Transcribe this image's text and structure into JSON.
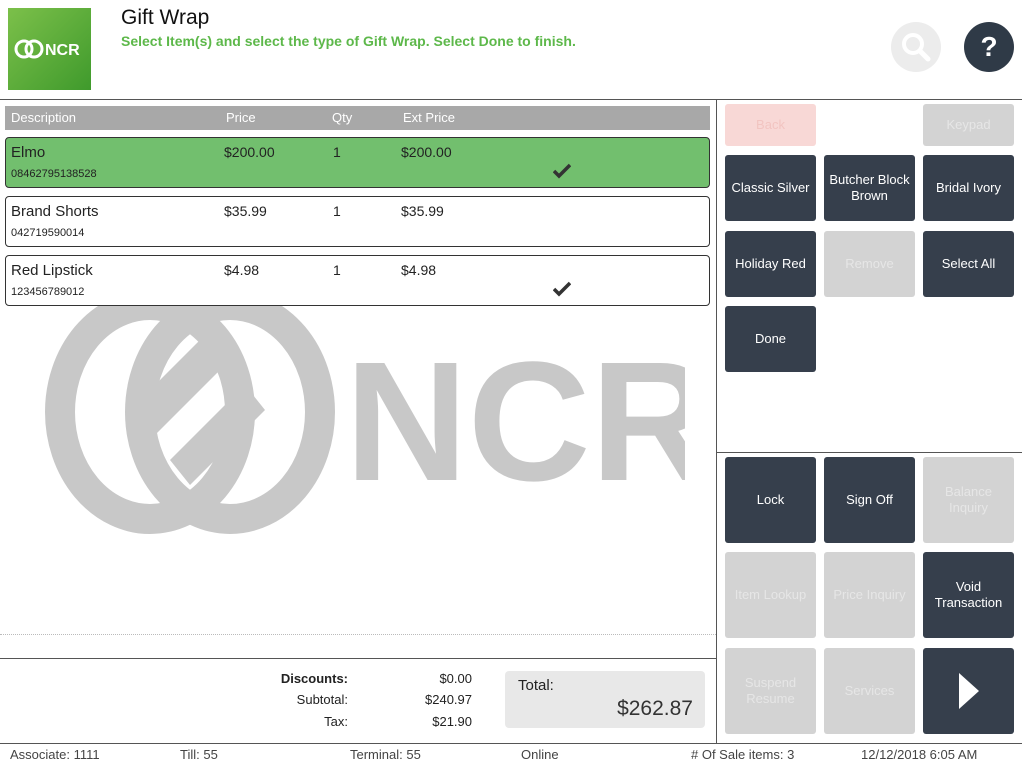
{
  "header": {
    "logo_text": "NCR",
    "title": "Gift Wrap",
    "subtitle": "Select Item(s) and select the type of Gift Wrap. Select Done to finish.",
    "help_label": "?"
  },
  "list": {
    "columns": {
      "description": "Description",
      "price": "Price",
      "qty": "Qty",
      "ext_price": "Ext Price"
    },
    "items": [
      {
        "description": "Elmo",
        "upc": "08462795138528",
        "price": "$200.00",
        "qty": "1",
        "ext_price": "$200.00",
        "checked": true,
        "selected": true
      },
      {
        "description": "Brand Shorts",
        "upc": "042719590014",
        "price": "$35.99",
        "qty": "1",
        "ext_price": "$35.99",
        "checked": false,
        "selected": false
      },
      {
        "description": "Red Lipstick",
        "upc": "123456789012",
        "price": "$4.98",
        "qty": "1",
        "ext_price": "$4.98",
        "checked": true,
        "selected": false
      }
    ],
    "watermark_text": "NCR"
  },
  "actions": {
    "back": "Back",
    "keypad": "Keypad",
    "classic_silver": "Classic Silver",
    "butcher_block_brown": "Butcher Block Brown",
    "bridal_ivory": "Bridal Ivory",
    "holiday_red": "Holiday Red",
    "remove": "Remove",
    "select_all": "Select All",
    "done": "Done"
  },
  "functions": {
    "lock": "Lock",
    "sign_off": "Sign Off",
    "balance_inquiry": "Balance Inquiry",
    "item_lookup": "Item Lookup",
    "price_inquiry": "Price Inquiry",
    "void_transaction": "Void Transaction",
    "suspend_resume": "Suspend Resume",
    "services": "Services"
  },
  "totals": {
    "discounts_label": "Discounts:",
    "discounts": "$0.00",
    "subtotal_label": "Subtotal:",
    "subtotal": "$240.97",
    "tax_label": "Tax:",
    "tax": "$21.90",
    "total_label": "Total:",
    "total": "$262.87"
  },
  "status": {
    "associate": "Associate: 1111",
    "till": "Till: 55",
    "terminal": "Terminal: 55",
    "online": "Online",
    "sale_items": "# Of Sale items: 3",
    "datetime": "12/12/2018 6:05 AM"
  },
  "colors": {
    "accent_green": "#5db84a",
    "selected_row": "#72bf6e",
    "button_dark": "#363f4c",
    "button_disabled": "#d3d3d3"
  },
  "icons": {
    "search": "search-icon",
    "help": "help-icon",
    "check": "check-icon",
    "next": "chevron-right-icon"
  }
}
